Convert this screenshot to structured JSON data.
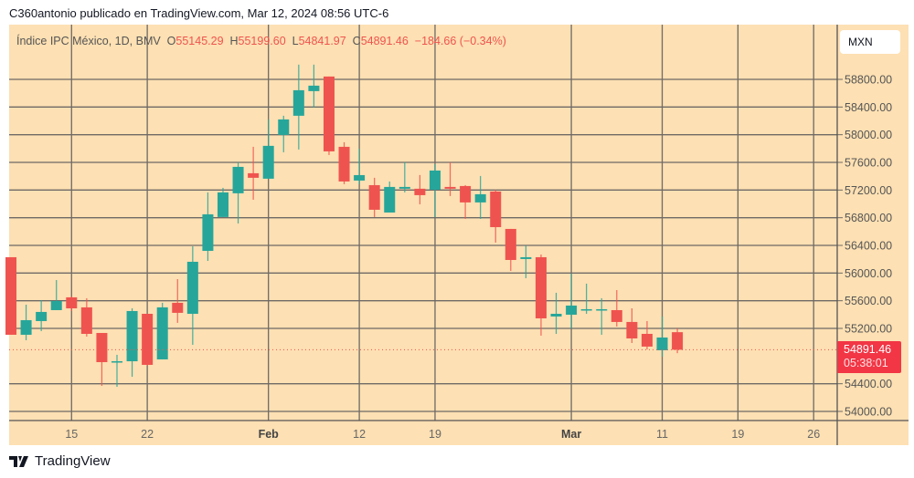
{
  "header": {
    "published": "C360antonio publicado en TradingView.com, Mar 12, 2024 08:56 UTC-6"
  },
  "legend": {
    "symbol": "Índice IPC México, 1D, BMV",
    "open_label": "O",
    "open": "55145.29",
    "high_label": "H",
    "high": "55199.60",
    "low_label": "L",
    "low": "54841.97",
    "close_label": "C",
    "close": "54891.46",
    "change": "−184.66 (−0.34%)"
  },
  "currency": "MXN",
  "last_price": {
    "value": "54891.46",
    "countdown": "05:38:01"
  },
  "footer": {
    "brand": "TradingView"
  },
  "colors": {
    "up": "#26a69a",
    "down": "#ef5350",
    "background": "#fde0b3",
    "grid": "#6e6a66"
  },
  "chart_data": {
    "type": "candlestick",
    "title": "",
    "ylim": [
      53900,
      59200
    ],
    "grid": true,
    "y_ticks": [
      "58800.00",
      "58400.00",
      "58000.00",
      "57600.00",
      "57200.00",
      "56800.00",
      "56400.00",
      "56000.00",
      "55600.00",
      "55200.00",
      "54400.00",
      "54000.00"
    ],
    "y_tick_values": [
      58800,
      58400,
      58000,
      57600,
      57200,
      56800,
      56400,
      56000,
      55600,
      55200,
      54400,
      54000
    ],
    "x_ticks": [
      {
        "label": "15",
        "bar": 4,
        "bold": false
      },
      {
        "label": "22",
        "bar": 9,
        "bold": false
      },
      {
        "label": "Feb",
        "bar": 17,
        "bold": true
      },
      {
        "label": "12",
        "bar": 23,
        "bold": false
      },
      {
        "label": "19",
        "bar": 28,
        "bold": false
      },
      {
        "label": "Mar",
        "bar": 37,
        "bold": true
      },
      {
        "label": "11",
        "bar": 43,
        "bold": false
      },
      {
        "label": "19",
        "bar": 48,
        "bold": false
      },
      {
        "label": "26",
        "bar": 53,
        "bold": false
      }
    ],
    "ohlc": [
      [
        56229,
        56229,
        55108,
        55108
      ],
      [
        55108,
        55543,
        55029,
        55319
      ],
      [
        55306,
        55609,
        55161,
        55438
      ],
      [
        55464,
        55899,
        55464,
        55596
      ],
      [
        55649,
        55662,
        55451,
        55490
      ],
      [
        55504,
        55636,
        55082,
        55121
      ],
      [
        55134,
        55134,
        54369,
        54712
      ],
      [
        54712,
        54818,
        54356,
        54725
      ],
      [
        54725,
        55490,
        54501,
        55451
      ],
      [
        55411,
        55411,
        54660,
        54673
      ],
      [
        54752,
        55570,
        54752,
        55504
      ],
      [
        55570,
        55912,
        55280,
        55425
      ],
      [
        55411,
        56387,
        54963,
        56163
      ],
      [
        56321,
        57166,
        56176,
        56849
      ],
      [
        56810,
        57232,
        56810,
        57166
      ],
      [
        57153,
        57601,
        56717,
        57535
      ],
      [
        57443,
        57825,
        57060,
        57377
      ],
      [
        57364,
        58221,
        57364,
        57839
      ],
      [
        57997,
        58274,
        57746,
        58221
      ],
      [
        58274,
        59013,
        57786,
        58643
      ],
      [
        58630,
        59013,
        58392,
        58709
      ],
      [
        58841,
        58841,
        57707,
        57759
      ],
      [
        57825,
        57891,
        57285,
        57324
      ],
      [
        57337,
        57799,
        57285,
        57416
      ],
      [
        57271,
        57377,
        56810,
        56915
      ],
      [
        56875,
        57324,
        56875,
        57245
      ],
      [
        57219,
        57601,
        57166,
        57245
      ],
      [
        57219,
        57417,
        56994,
        57126
      ],
      [
        57205,
        57575,
        56810,
        57482
      ],
      [
        57245,
        57601,
        57113,
        57219
      ],
      [
        57258,
        57271,
        56783,
        57021
      ],
      [
        57021,
        57403,
        56783,
        57139
      ],
      [
        57179,
        57205,
        56440,
        56664
      ],
      [
        56638,
        56638,
        56031,
        56189
      ],
      [
        56203,
        56400,
        55926,
        56229
      ],
      [
        56229,
        56268,
        55095,
        55345
      ],
      [
        55372,
        55715,
        55121,
        55411
      ],
      [
        55398,
        55992,
        55200,
        55530
      ],
      [
        55464,
        55847,
        55411,
        55477
      ],
      [
        55464,
        55636,
        55108,
        55477
      ],
      [
        55464,
        55754,
        55227,
        55293
      ],
      [
        55293,
        55490,
        54989,
        55055
      ],
      [
        55121,
        55306,
        54897,
        54937
      ],
      [
        54884,
        55372,
        54791,
        55068
      ],
      [
        55145.29,
        55199.6,
        54841.97,
        54891.46
      ]
    ]
  }
}
